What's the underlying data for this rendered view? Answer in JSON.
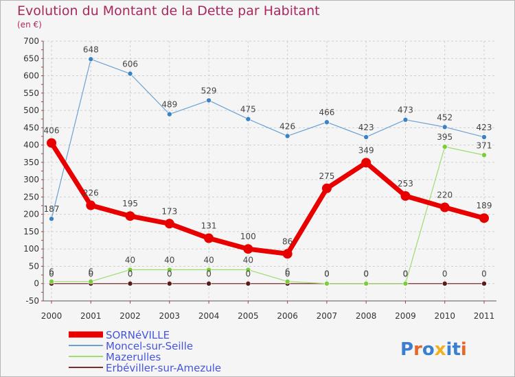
{
  "chart_data": {
    "type": "line",
    "title": "Evolution du Montant de la Dette par Habitant",
    "subtitle": "(en €)",
    "xlabel": "",
    "ylabel": "",
    "categories": [
      "2000",
      "2001",
      "2002",
      "2003",
      "2004",
      "2005",
      "2006",
      "2007",
      "2008",
      "2009",
      "2010",
      "2011"
    ],
    "ylim": [
      -50,
      700
    ],
    "yticks": [
      -50,
      0,
      50,
      100,
      150,
      200,
      250,
      300,
      350,
      400,
      450,
      500,
      550,
      600,
      650,
      700
    ],
    "grid": true,
    "series": [
      {
        "name": "SORNéVILLE",
        "color": "#e80000",
        "width": 7,
        "marker": 7,
        "labelColor": "#ff0000",
        "values": [
          406,
          226,
          195,
          173,
          131,
          100,
          86,
          275,
          349,
          253,
          220,
          189
        ],
        "labels": [
          "406",
          "226",
          "195",
          "173",
          "131",
          "100",
          "86",
          "275",
          "349",
          "253",
          "220",
          "189"
        ]
      },
      {
        "name": "Moncel-sur-Seille",
        "color": "#6aa1d4",
        "width": 1.2,
        "marker": 3.5,
        "markerColor": "#3a82c4",
        "labelColor": "#6aa1d4",
        "values": [
          187,
          648,
          606,
          489,
          529,
          475,
          426,
          466,
          423,
          473,
          452,
          423
        ],
        "labels": [
          "187",
          "648",
          "606",
          "489",
          "529",
          "475",
          "426",
          "466",
          "423",
          "473",
          "452",
          "423"
        ]
      },
      {
        "name": "Mazerulles",
        "color": "#9fdb6e",
        "width": 1.2,
        "marker": 3.5,
        "markerColor": "#7acc3a",
        "labelColor": "#9fdb6e",
        "values": [
          6,
          6,
          40,
          40,
          40,
          40,
          6,
          0,
          0,
          0,
          395,
          371
        ],
        "labels": [
          "6",
          "6",
          "40",
          "40",
          "40",
          "40",
          "6",
          "0",
          "0",
          "0",
          "395",
          "371"
        ]
      },
      {
        "name": "Erbéviller-sur-Amezule",
        "color": "#7a2d2d",
        "width": 1.2,
        "marker": 3.5,
        "markerColor": "#5a1a1a",
        "labelColor": "#7a2d2d",
        "values": [
          0,
          0,
          0,
          0,
          0,
          0,
          0,
          0,
          0,
          0,
          0,
          0
        ],
        "labels": [
          "0",
          "0",
          "0",
          "0",
          "0",
          "0",
          "0",
          "0",
          "0",
          "0",
          "0",
          "0"
        ]
      }
    ]
  },
  "legend": {
    "position": "bottom-left",
    "items": [
      "SORNéVILLE",
      "Moncel-sur-Seille",
      "Mazerulles",
      "Erbéviller-sur-Amezule"
    ],
    "colors": [
      "#e80000",
      "#6aa1d4",
      "#9fdb6e",
      "#7a2d2d"
    ],
    "labelColor": "#4455dd"
  },
  "logo": {
    "text": "Proxiti",
    "colors": [
      "#3a7fd0",
      "#e8662a",
      "#3a7fd0",
      "#f0b020",
      "#3a7fd0",
      "#3a7fd0",
      "#e8662a"
    ]
  }
}
